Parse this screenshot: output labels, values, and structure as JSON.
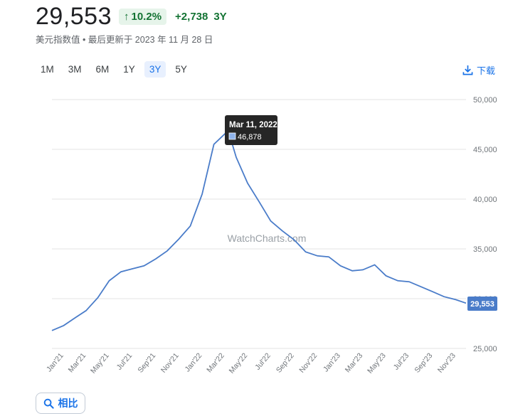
{
  "header": {
    "price": "29,553",
    "change_percent": "10.2%",
    "change_value": "+2,738",
    "change_period": "3Y"
  },
  "subtitle": "美元指数值 • 最后更新于 2023 年 11 月 28 日",
  "ranges": [
    "1M",
    "3M",
    "6M",
    "1Y",
    "3Y",
    "5Y"
  ],
  "active_range": "3Y",
  "download_label": "下载",
  "compare_label": "相比",
  "watermark": "WatchCharts.com",
  "tooltip": {
    "date": "Mar 11, 2022",
    "value": "46,878"
  },
  "last_value_label": "29,553",
  "colors": {
    "line": "#4a7cc9",
    "up": "#137333",
    "up_bg": "#e6f4ea",
    "accent": "#1a73e8"
  },
  "chart_data": {
    "type": "line",
    "ylim": [
      25000,
      50000
    ],
    "yticks": [
      25000,
      30000,
      35000,
      40000,
      45000,
      50000
    ],
    "ytick_labels": [
      "25,000",
      "30,000",
      "35,000",
      "40,000",
      "45,000",
      "50,000"
    ],
    "xtick_labels": [
      "Jan'21",
      "Mar'21",
      "May'21",
      "Jul'21",
      "Sep'21",
      "Nov'21",
      "Jan'22",
      "Mar'22",
      "May'22",
      "Jul'22",
      "Sep'22",
      "Nov'22",
      "Jan'23",
      "Mar'23",
      "May'23",
      "Jul'23",
      "Sep'23",
      "Nov'23"
    ],
    "xlabel": "",
    "ylabel": "",
    "grid": true,
    "series": [
      {
        "x": [
          "2020-12-01",
          "2021-01-01",
          "2021-02-01",
          "2021-03-01",
          "2021-04-01",
          "2021-05-01",
          "2021-06-01",
          "2021-07-01",
          "2021-08-01",
          "2021-09-01",
          "2021-10-01",
          "2021-11-01",
          "2021-12-01",
          "2022-01-01",
          "2022-02-01",
          "2022-03-11",
          "2022-04-01",
          "2022-05-01",
          "2022-06-01",
          "2022-07-01",
          "2022-08-01",
          "2022-09-01",
          "2022-10-01",
          "2022-11-01",
          "2022-12-01",
          "2023-01-01",
          "2023-02-01",
          "2023-03-01",
          "2023-04-01",
          "2023-05-01",
          "2023-06-01",
          "2023-07-01",
          "2023-08-01",
          "2023-09-01",
          "2023-10-01",
          "2023-11-01",
          "2023-11-28"
        ],
        "values": [
          26800,
          27300,
          28100,
          28800,
          30100,
          31800,
          32700,
          33000,
          33300,
          34000,
          34800,
          36000,
          37300,
          40500,
          45500,
          46878,
          44200,
          41600,
          39700,
          37800,
          36800,
          35900,
          34700,
          34300,
          34200,
          33300,
          32800,
          32900,
          33400,
          32300,
          31800,
          31700,
          31200,
          30700,
          30200,
          29900,
          29553
        ]
      }
    ]
  }
}
